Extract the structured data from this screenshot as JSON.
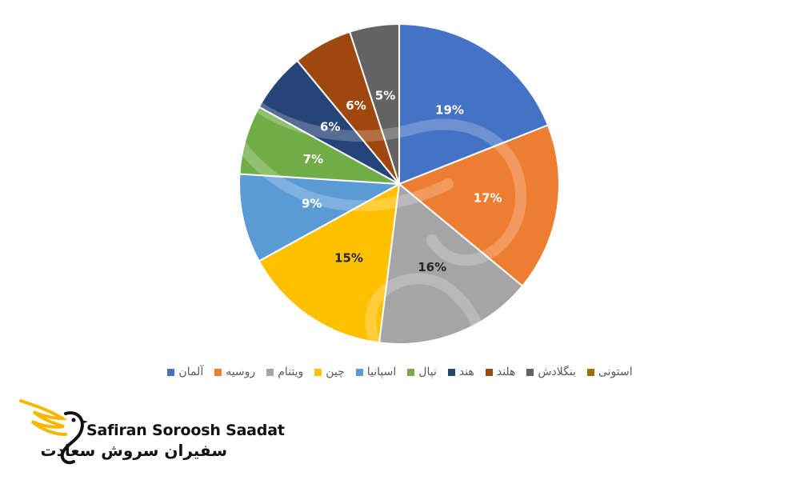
{
  "chart_data": {
    "type": "pie",
    "start_angle_deg": 0,
    "direction": "clockwise",
    "label_format": "percent",
    "slices": [
      {
        "name": "آلمان",
        "value": 19,
        "label": "19%",
        "color": "#4472C4",
        "label_color": "#FFFFFF"
      },
      {
        "name": "روسیه",
        "value": 17,
        "label": "17%",
        "color": "#ED7D31",
        "label_color": "#FFFFFF"
      },
      {
        "name": "ویتنام",
        "value": 16,
        "label": "16%",
        "color": "#A5A5A5",
        "label_color": "#262626"
      },
      {
        "name": "چین",
        "value": 15,
        "label": "15%",
        "color": "#FFC000",
        "label_color": "#262626"
      },
      {
        "name": "اسپانیا",
        "value": 9,
        "label": "9%",
        "color": "#5B9BD5",
        "label_color": "#FFFFFF"
      },
      {
        "name": "نپال",
        "value": 7,
        "label": "7%",
        "color": "#70AD47",
        "label_color": "#FFFFFF"
      },
      {
        "name": "هند",
        "value": 6,
        "label": "6%",
        "color": "#264478",
        "label_color": "#FFFFFF"
      },
      {
        "name": "هلند",
        "value": 6,
        "label": "6%",
        "color": "#9E480E",
        "label_color": "#FFFFFF"
      },
      {
        "name": "بنگلادش",
        "value": 5,
        "label": "5%",
        "color": "#636363",
        "label_color": "#FFFFFF"
      }
    ],
    "legend": {
      "placement": "bottom",
      "entries": [
        {
          "name": "آلمان",
          "color": "#4472C4"
        },
        {
          "name": "روسیه",
          "color": "#ED7D31"
        },
        {
          "name": "ویتنام",
          "color": "#A5A5A5"
        },
        {
          "name": "چین",
          "color": "#FFC000"
        },
        {
          "name": "اسپانیا",
          "color": "#5B9BD5"
        },
        {
          "name": "نپال",
          "color": "#70AD47"
        },
        {
          "name": "هند",
          "color": "#264478"
        },
        {
          "name": "هلند",
          "color": "#9E480E"
        },
        {
          "name": "بنگلادش",
          "color": "#636363"
        },
        {
          "name": "استونی",
          "color": "#997300"
        }
      ]
    }
  },
  "logo": {
    "latin_text": "Safiran Soroosh Saadat",
    "persian_text": "سفیران سروش سعادت",
    "accent_color": "#F5B800"
  }
}
